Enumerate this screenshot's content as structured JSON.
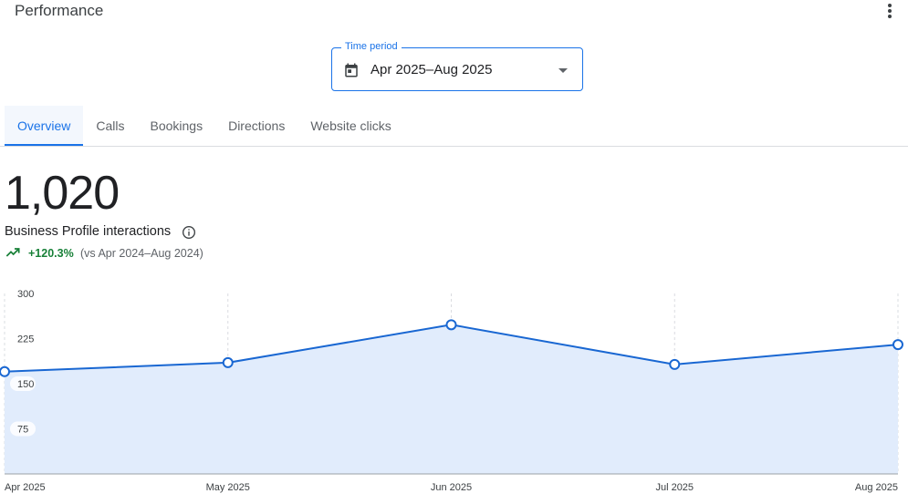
{
  "header": {
    "title": "Performance"
  },
  "time_period": {
    "legend": "Time period",
    "value": "Apr 2025–Aug 2025"
  },
  "tabs": [
    {
      "label": "Overview",
      "active": true
    },
    {
      "label": "Calls",
      "active": false
    },
    {
      "label": "Bookings",
      "active": false
    },
    {
      "label": "Directions",
      "active": false
    },
    {
      "label": "Website clicks",
      "active": false
    }
  ],
  "summary": {
    "total": "1,020",
    "label": "Business Profile interactions",
    "change": "+120.3%",
    "compare": "(vs Apr 2024–Aug 2024)"
  },
  "colors": {
    "accent": "#1a73e8",
    "line": "#1967d2",
    "fill": "#e1ecfc",
    "positive": "#188038"
  },
  "chart_data": {
    "type": "area",
    "categories": [
      "Apr 2025",
      "May 2025",
      "Jun 2025",
      "Jul 2025",
      "Aug 2025"
    ],
    "values": [
      170,
      185,
      248,
      182,
      215
    ],
    "yticks": [
      "300",
      "225",
      "150",
      "75"
    ],
    "ylim": [
      0,
      300
    ],
    "grid": "vertical-dashed",
    "title": "",
    "xlabel": "",
    "ylabel": ""
  }
}
